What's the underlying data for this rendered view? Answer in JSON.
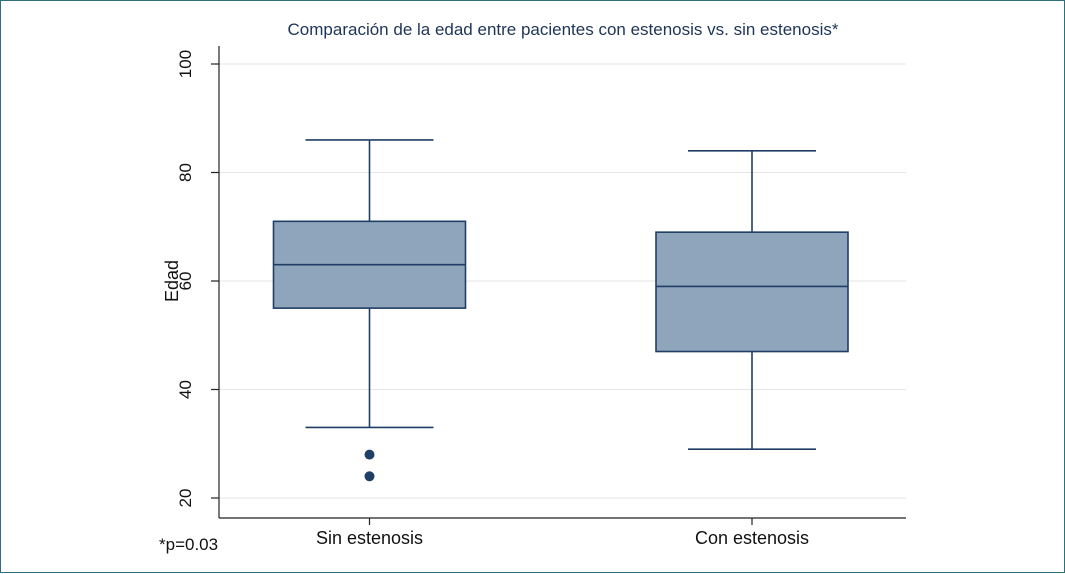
{
  "chart_data": {
    "type": "boxplot",
    "title": "Comparación de la edad entre pacientes con estenosis vs. sin estenosis*",
    "xlabel": "",
    "ylabel": "Edad",
    "ylim": [
      20,
      100
    ],
    "yticks": [
      "20",
      "40",
      "60",
      "80",
      "100"
    ],
    "grid": true,
    "categories": [
      "Sin estenosis",
      "Con estenosis"
    ],
    "boxes": [
      {
        "lower_whisker": 33,
        "q1": 55,
        "median": 63,
        "q3": 71,
        "upper_whisker": 86,
        "outliers": [
          28,
          24
        ]
      },
      {
        "lower_whisker": 29,
        "q1": 47,
        "median": 59,
        "q3": 69,
        "upper_whisker": 84,
        "outliers": []
      }
    ],
    "colors": {
      "box_fill": "#8fa5bb",
      "box_stroke": "#1f3f66",
      "outlier": "#1f3f66",
      "grid": "#e6e6e6",
      "title": "#1d3557"
    },
    "footnote": "*p=0.03"
  }
}
